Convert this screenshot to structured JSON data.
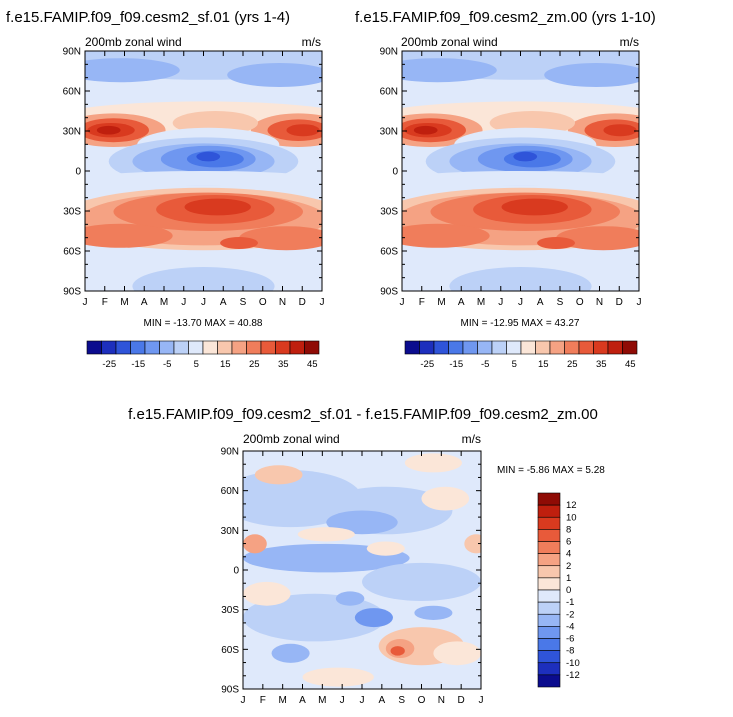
{
  "chart_data": [
    {
      "type": "heatmap",
      "title": "f.e15.FAMIP.f09_f09.cesm2_sf.01 (yrs 1-4)",
      "subtitle_left": "200mb zonal wind",
      "subtitle_right": "m/s",
      "xlabel": "",
      "ylabel": "",
      "x_ticks": [
        "J",
        "F",
        "M",
        "A",
        "M",
        "J",
        "J",
        "A",
        "S",
        "O",
        "N",
        "D",
        "J"
      ],
      "y_ticks": [
        "90N",
        "60N",
        "30N",
        "0",
        "30S",
        "60S",
        "90S"
      ],
      "stats_text": "MIN = -13.70 MAX =  40.88",
      "colorbar": {
        "orientation": "horizontal",
        "levels": [
          -30,
          -25,
          -20,
          -15,
          -10,
          -5,
          0,
          5,
          10,
          15,
          20,
          25,
          30,
          35,
          40,
          45,
          50
        ],
        "labels": [
          "-25",
          "-15",
          "-5",
          "5",
          "15",
          "25",
          "35",
          "45"
        ]
      }
    },
    {
      "type": "heatmap",
      "title": "f.e15.FAMIP.f09_f09.cesm2_zm.00 (yrs 1-10)",
      "subtitle_left": "200mb zonal wind",
      "subtitle_right": "m/s",
      "xlabel": "",
      "ylabel": "",
      "x_ticks": [
        "J",
        "F",
        "M",
        "A",
        "M",
        "J",
        "J",
        "A",
        "S",
        "O",
        "N",
        "D",
        "J"
      ],
      "y_ticks": [
        "90N",
        "60N",
        "30N",
        "0",
        "30S",
        "60S",
        "90S"
      ],
      "stats_text": "MIN = -12.95 MAX =  43.27",
      "colorbar": {
        "orientation": "horizontal",
        "levels": [
          -30,
          -25,
          -20,
          -15,
          -10,
          -5,
          0,
          5,
          10,
          15,
          20,
          25,
          30,
          35,
          40,
          45,
          50
        ],
        "labels": [
          "-25",
          "-15",
          "-5",
          "5",
          "15",
          "25",
          "35",
          "45"
        ]
      }
    },
    {
      "type": "heatmap",
      "title": "f.e15.FAMIP.f09_f09.cesm2_sf.01 - f.e15.FAMIP.f09_f09.cesm2_zm.00",
      "subtitle_left": "200mb zonal wind",
      "subtitle_right": "m/s",
      "xlabel": "",
      "ylabel": "",
      "x_ticks": [
        "J",
        "F",
        "M",
        "A",
        "M",
        "J",
        "J",
        "A",
        "S",
        "O",
        "N",
        "D",
        "J"
      ],
      "y_ticks": [
        "90N",
        "60N",
        "30N",
        "0",
        "30S",
        "60S",
        "90S"
      ],
      "stats_text": "MIN = -5.86 MAX =   5.28",
      "colorbar": {
        "orientation": "vertical",
        "labels": [
          "12",
          "10",
          "8",
          "6",
          "4",
          "2",
          "1",
          "0",
          "-1",
          "-2",
          "-4",
          "-6",
          "-8",
          "-10",
          "-12"
        ]
      }
    }
  ],
  "colors": {
    "wind_scale": [
      "#0b0c8e",
      "#1d2fbd",
      "#2f54d9",
      "#4a78e8",
      "#6f97f0",
      "#97b6f5",
      "#bcd1f7",
      "#dfe9fb",
      "#fbe6d8",
      "#f8c7ad",
      "#f5a283",
      "#f07d5b",
      "#e85a3a",
      "#d93a1f",
      "#bf1f0e",
      "#8f0b05"
    ],
    "diff_scale": [
      "#0b0c8e",
      "#1d2fbd",
      "#2f54d9",
      "#4a78e8",
      "#6f97f0",
      "#97b6f5",
      "#bcd1f7",
      "#dfe9fb",
      "#fbe6d8",
      "#f8c7ad",
      "#f5a283",
      "#f07d5b",
      "#e85a3a",
      "#d93a1f",
      "#bf1f0e",
      "#8f0b05"
    ]
  }
}
